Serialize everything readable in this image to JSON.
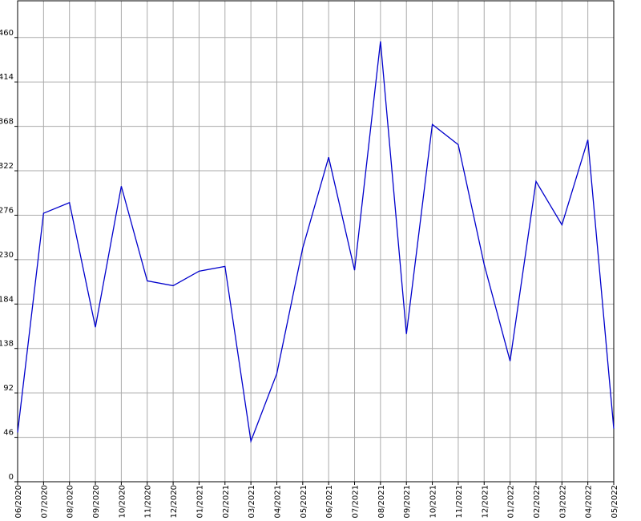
{
  "chart_data": {
    "type": "line",
    "categories": [
      "06/2020",
      "07/2020",
      "08/2020",
      "09/2020",
      "10/2020",
      "11/2020",
      "12/2020",
      "01/2021",
      "02/2021",
      "03/2021",
      "04/2021",
      "05/2021",
      "06/2021",
      "07/2021",
      "08/2021",
      "09/2021",
      "10/2021",
      "11/2021",
      "12/2021",
      "01/2022",
      "02/2022",
      "03/2022",
      "04/2022",
      "05/2022"
    ],
    "series": [
      {
        "color": "#0000cc",
        "values": [
          51,
          278,
          289,
          160,
          306,
          208,
          203,
          218,
          223,
          42,
          112,
          242,
          336,
          219,
          456,
          153,
          370,
          349,
          225,
          125,
          311,
          266,
          354,
          55
        ]
      }
    ],
    "ylim": [
      0,
      498
    ],
    "yticks": [
      0,
      46,
      92,
      138,
      184,
      230,
      276,
      322,
      368,
      414,
      460
    ],
    "grid": true
  }
}
